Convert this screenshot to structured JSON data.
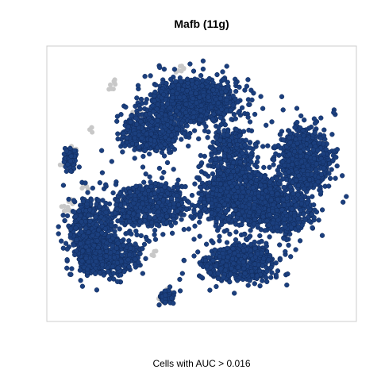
{
  "chart_data": {
    "type": "scatter",
    "title": "Mafb (11g)",
    "xlabel": "Cells with AUC > 0.016",
    "ylabel": "",
    "grid": false,
    "legend": "none",
    "axes_visible": false,
    "colors": {
      "point": "#1b3f7e",
      "point_edge": "#102a5a",
      "background_point": "#c8c8c8",
      "frame": "#cccccc"
    },
    "xlim": [
      0,
      100
    ],
    "ylim": [
      0,
      100
    ],
    "clusters": [
      {
        "name": "",
        "center": [
          47,
          82
        ],
        "spread": [
          12,
          7
        ],
        "count": 900
      },
      {
        "name": "",
        "center": [
          32,
          70
        ],
        "spread": [
          8,
          6
        ],
        "count": 500
      },
      {
        "name": "",
        "center": [
          85,
          60
        ],
        "spread": [
          7,
          10
        ],
        "count": 650
      },
      {
        "name": "",
        "center": [
          12,
          33
        ],
        "spread": [
          6,
          10
        ],
        "count": 450
      },
      {
        "name": "",
        "center": [
          18,
          22
        ],
        "spread": [
          9,
          6
        ],
        "count": 400
      },
      {
        "name": "",
        "center": [
          32,
          42
        ],
        "spread": [
          10,
          7
        ],
        "count": 520
      },
      {
        "name": "",
        "center": [
          63,
          45
        ],
        "spread": [
          12,
          9
        ],
        "count": 800
      },
      {
        "name": "",
        "center": [
          78,
          40
        ],
        "spread": [
          8,
          7
        ],
        "count": 400
      },
      {
        "name": "",
        "center": [
          62,
          20
        ],
        "spread": [
          10,
          6
        ],
        "count": 520
      },
      {
        "name": "",
        "center": [
          60,
          62
        ],
        "spread": [
          6,
          8
        ],
        "count": 300
      },
      {
        "name": "",
        "center": [
          5,
          60
        ],
        "spread": [
          2,
          3
        ],
        "count": 70
      },
      {
        "name": "",
        "center": [
          38,
          7
        ],
        "spread": [
          2,
          2.2
        ],
        "count": 60
      }
    ],
    "background_cells": [
      [
        4,
        61
      ],
      [
        6,
        64
      ],
      [
        3,
        58
      ],
      [
        12,
        71
      ],
      [
        19,
        87
      ],
      [
        20,
        89
      ],
      [
        28,
        78
      ],
      [
        32,
        71
      ],
      [
        5,
        44
      ],
      [
        4,
        40
      ],
      [
        3,
        41
      ],
      [
        18,
        27
      ],
      [
        20,
        26
      ],
      [
        34,
        24
      ],
      [
        38,
        8
      ],
      [
        37,
        6
      ],
      [
        43,
        95
      ],
      [
        42,
        93
      ],
      [
        10,
        49
      ],
      [
        6,
        29
      ]
    ]
  }
}
